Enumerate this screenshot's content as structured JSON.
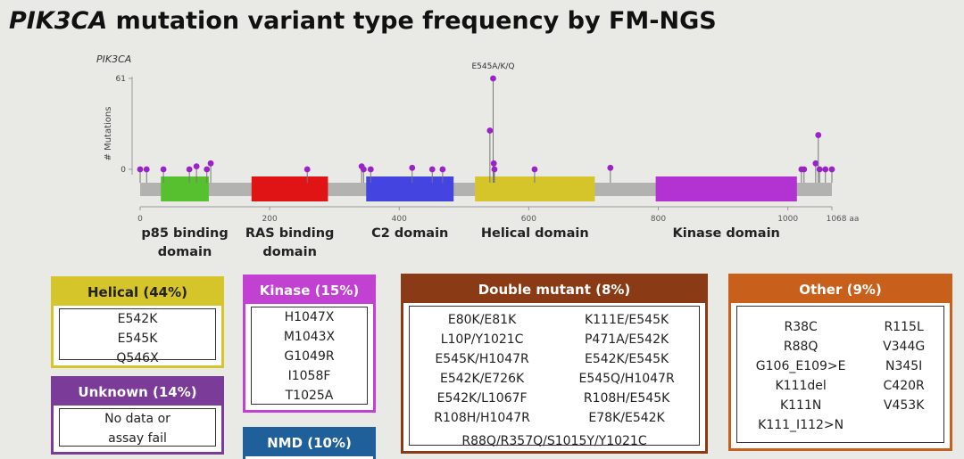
{
  "title": {
    "gene": "PIK3CA",
    "text": "mutation variant type frequency by FM-NGS"
  },
  "chart_data": {
    "type": "lollipop",
    "gene_label": "PIK3CA",
    "y_label": "# Mutations",
    "annotation": "E545A/K/Q",
    "color": "#9b22c9",
    "x": [
      0,
      10,
      36,
      76,
      87,
      103,
      109,
      258,
      342,
      345,
      356,
      420,
      451,
      467,
      540,
      545,
      546,
      547,
      609,
      726,
      1021,
      1025,
      1043,
      1047,
      1049,
      1058,
      1068
    ],
    "values": [
      0,
      0,
      0,
      0,
      2,
      0,
      4,
      0,
      2,
      0,
      0,
      1,
      0,
      0,
      26,
      61,
      4,
      0,
      0,
      1,
      0,
      0,
      4,
      23,
      0,
      0,
      0
    ],
    "xlim": [
      0,
      1068
    ],
    "xticks": [
      0,
      200,
      400,
      600,
      800,
      1000,
      {
        "value": 1068,
        "label": "1068 aa"
      }
    ],
    "ylim": [
      0,
      61
    ],
    "yticks": [
      0,
      61
    ],
    "domains": [
      {
        "name": "p85 binding domain",
        "start": 32,
        "end": 106,
        "color": "#56c02e"
      },
      {
        "name": "RAS binding domain",
        "start": 172,
        "end": 290,
        "color": "#e01414"
      },
      {
        "name": "C2 domain",
        "start": 349,
        "end": 484,
        "color": "#4444e0"
      },
      {
        "name": "Helical domain",
        "start": 517,
        "end": 702,
        "color": "#d6c52a"
      },
      {
        "name": "Kinase domain",
        "start": 796,
        "end": 1014,
        "color": "#b232d2"
      }
    ]
  },
  "panels": {
    "helical": {
      "header": "Helical (44%)",
      "items": [
        "E542K",
        "E545K",
        "Q546X"
      ]
    },
    "unknown": {
      "header": "Unknown (14%)",
      "items": [
        "No data or",
        "assay fail"
      ]
    },
    "kinase": {
      "header": "Kinase (15%)",
      "items": [
        "H1047X",
        "M1043X",
        "G1049R",
        "I1058F",
        "T1025A"
      ]
    },
    "nmd": {
      "header": "NMD (10%)"
    },
    "double": {
      "header": "Double mutant (8%)",
      "columns": [
        [
          "E80K/E81K",
          "L10P/Y1021C",
          "E545K/H1047R",
          "E542K/E726K",
          "E542K/L1067F",
          "R108H/H1047R"
        ],
        [
          "K111E/E545K",
          "P471A/E542K",
          "E542K/E545K",
          "E545Q/H1047R",
          "R108H/E545K",
          "E78K/E542K"
        ]
      ],
      "footer": "R88Q/R357Q/S1015Y/Y1021C"
    },
    "other": {
      "header": "Other (9%)",
      "columns": [
        [
          "R38C",
          "R88Q",
          "G106_E109>E",
          "K111del",
          "K111N",
          "K111_I112>N"
        ],
        [
          "R115L",
          "V344G",
          "N345I",
          "C420R",
          "V453K"
        ]
      ]
    }
  }
}
